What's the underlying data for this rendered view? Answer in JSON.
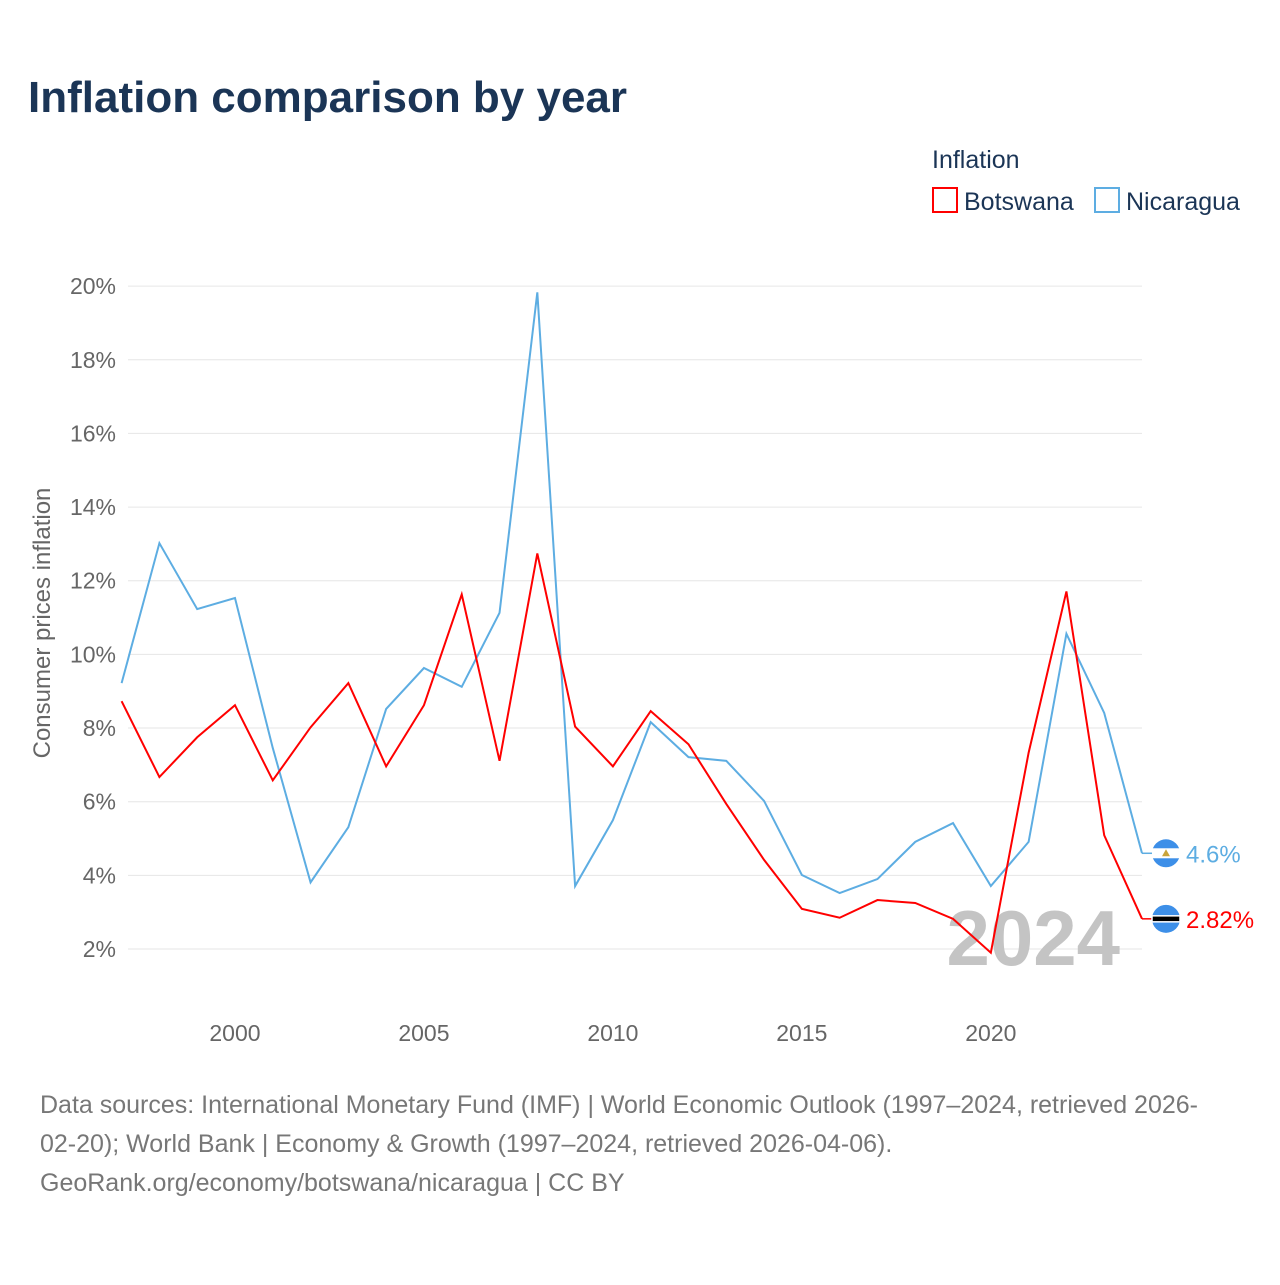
{
  "chart_data": {
    "type": "line",
    "title": "Inflation comparison by year",
    "ylabel": "Consumer prices inflation",
    "xlabel": "",
    "legend_title": "Inflation",
    "legend_position": "top-right",
    "x": [
      1997,
      1998,
      1999,
      2000,
      2001,
      2002,
      2003,
      2004,
      2005,
      2006,
      2007,
      2008,
      2009,
      2010,
      2011,
      2012,
      2013,
      2014,
      2015,
      2016,
      2017,
      2018,
      2019,
      2020,
      2021,
      2022,
      2023,
      2024
    ],
    "xlim": [
      1997,
      2024
    ],
    "ylim": [
      0.6,
      20.6
    ],
    "xticks": [
      2000,
      2005,
      2010,
      2015,
      2020
    ],
    "yticks": [
      2,
      4,
      6,
      8,
      10,
      12,
      14,
      16,
      18,
      20
    ],
    "ytick_labels": [
      "2%",
      "4%",
      "6%",
      "8%",
      "10%",
      "12%",
      "14%",
      "16%",
      "18%",
      "20%"
    ],
    "xtick_labels": [
      "2000",
      "2005",
      "2010",
      "2015",
      "2020"
    ],
    "grid": true,
    "year_watermark": "2024",
    "series": [
      {
        "name": "Botswana",
        "color": "#ff0000",
        "end_label": "2.82%",
        "values": [
          8.73,
          6.67,
          7.75,
          8.62,
          6.58,
          8.02,
          9.22,
          6.96,
          8.62,
          11.63,
          7.11,
          12.74,
          8.04,
          6.96,
          8.46,
          7.56,
          5.94,
          4.42,
          3.09,
          2.85,
          3.33,
          3.25,
          2.82,
          1.9,
          7.33,
          11.71,
          5.09,
          2.82
        ]
      },
      {
        "name": "Nicaragua",
        "color": "#5dade2",
        "end_label": "4.6%",
        "values": [
          9.22,
          13.02,
          11.23,
          11.53,
          7.46,
          3.81,
          5.31,
          8.52,
          9.63,
          9.12,
          11.13,
          19.83,
          3.71,
          5.5,
          8.16,
          7.21,
          7.11,
          6.02,
          4.01,
          3.52,
          3.9,
          4.91,
          5.42,
          3.71,
          4.91,
          10.56,
          8.41,
          4.6
        ]
      }
    ]
  },
  "footer": {
    "line1": "Data sources: International Monetary Fund (IMF) | World Economic Outlook (1997–2024, retrieved 2026-",
    "line2": "02-20); World Bank | Economy & Growth (1997–2024, retrieved 2026-04-06).",
    "line3": "GeoRank.org/economy/botswana/nicaragua | CC BY"
  }
}
